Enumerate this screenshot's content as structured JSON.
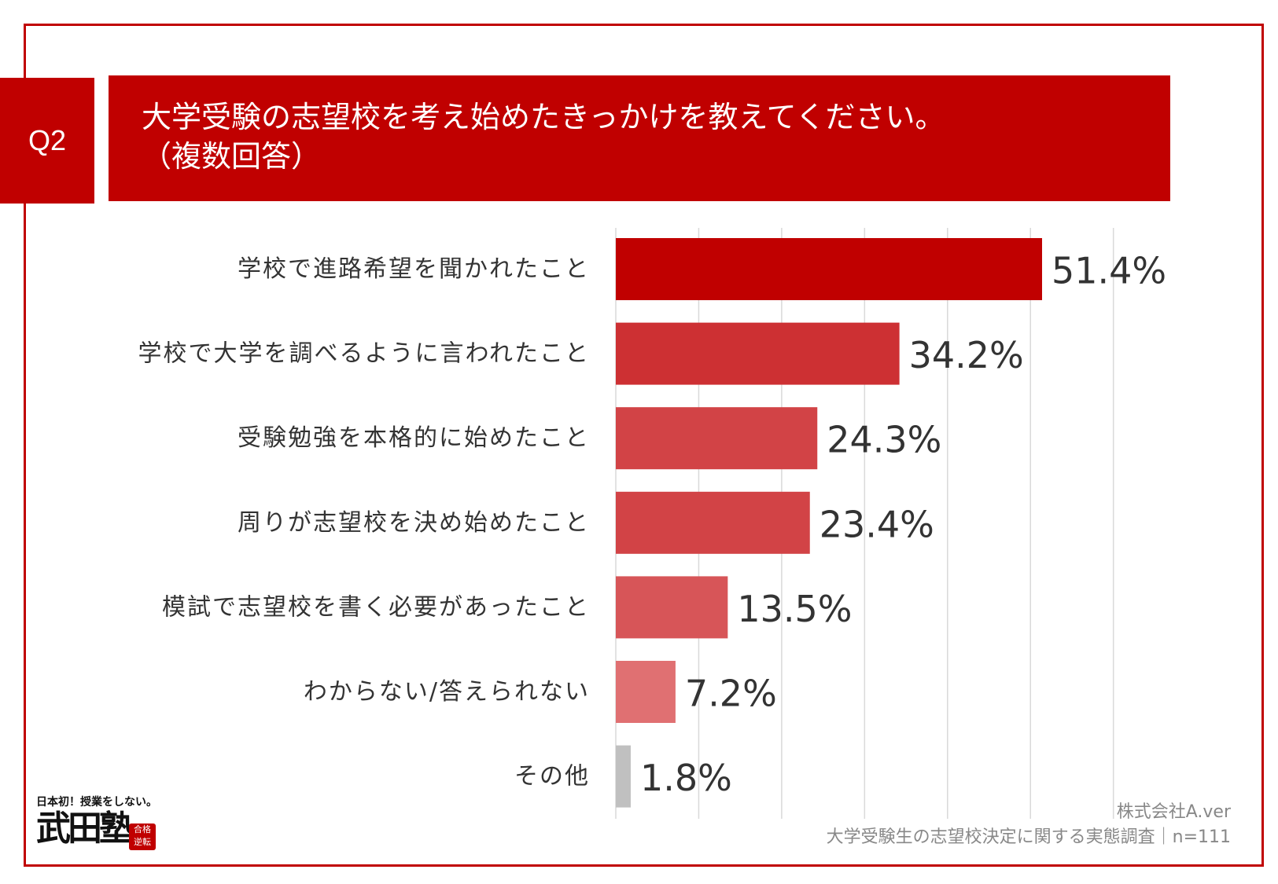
{
  "question": {
    "number": "Q2",
    "title_line1": "大学受験の志望校を考え始めたきっかけを教えてください。",
    "title_line2": "（複数回答）"
  },
  "chart_data": {
    "type": "bar",
    "orientation": "horizontal",
    "categories": [
      "学校で進路希望を聞かれたこと",
      "学校で大学を調べるように言われたこと",
      "受験勉強を本格的に始めたこと",
      "周りが志望校を決め始めたこと",
      "模試で志望校を書く必要があったこと",
      "わからない/答えられない",
      "その他"
    ],
    "values": [
      51.4,
      34.2,
      24.3,
      23.4,
      13.5,
      7.2,
      1.8
    ],
    "value_labels": [
      "51.4%",
      "34.2%",
      "24.3%",
      "23.4%",
      "13.5%",
      "7.2%",
      "1.8%"
    ],
    "bar_colors": [
      "#c00000",
      "#cd3033",
      "#d24346",
      "#d24346",
      "#d75558",
      "#e07072",
      "#c0c0c0"
    ],
    "xlim": [
      0,
      60
    ],
    "grid": true
  },
  "source": {
    "company": "株式会社A.ver",
    "survey": "大学受験生の志望校決定に関する実態調査｜n=111"
  },
  "logo": {
    "tagline": "日本初！授業をしない。",
    "name": "武田塾",
    "stamp": "合格\n逆転"
  },
  "colors": {
    "accent": "#c00000",
    "frame": "#c00000",
    "grid": "#d9d9d9",
    "text": "#333333"
  }
}
